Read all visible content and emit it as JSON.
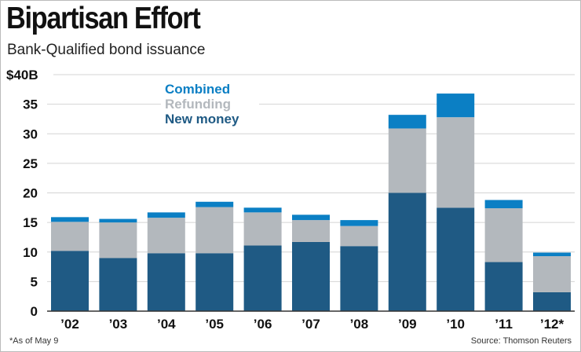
{
  "title": "Bipartisan Effort",
  "subtitle": "Bank-Qualified bond issuance",
  "footnote": "*As of May 9",
  "source": "Source: Thomson Reuters",
  "chart_data": {
    "type": "bar",
    "stacked": true,
    "categories": [
      "’02",
      "’03",
      "’04",
      "’05",
      "’06",
      "’07",
      "’08",
      "’09",
      "’10",
      "’11",
      "’12*"
    ],
    "y_tick_labels": [
      "0",
      "5",
      "10",
      "15",
      "20",
      "25",
      "30",
      "35",
      "$40B"
    ],
    "ylim": [
      0,
      40
    ],
    "grid": true,
    "legend_position": "top-left",
    "series": [
      {
        "name": "New money",
        "color": "#1f5a84",
        "values": [
          10.2,
          9.0,
          9.8,
          9.8,
          11.1,
          11.7,
          11.0,
          20.0,
          17.5,
          8.3,
          3.2
        ]
      },
      {
        "name": "Refunding",
        "color": "#b3b8bd",
        "values": [
          4.9,
          6.0,
          6.0,
          7.8,
          5.6,
          3.7,
          3.4,
          10.9,
          15.3,
          9.1,
          6.1
        ]
      },
      {
        "name": "Combined",
        "color": "#0b7fc4",
        "values": [
          0.8,
          0.6,
          0.9,
          0.9,
          0.8,
          0.9,
          1.0,
          2.3,
          4.0,
          1.4,
          0.6
        ]
      }
    ]
  }
}
